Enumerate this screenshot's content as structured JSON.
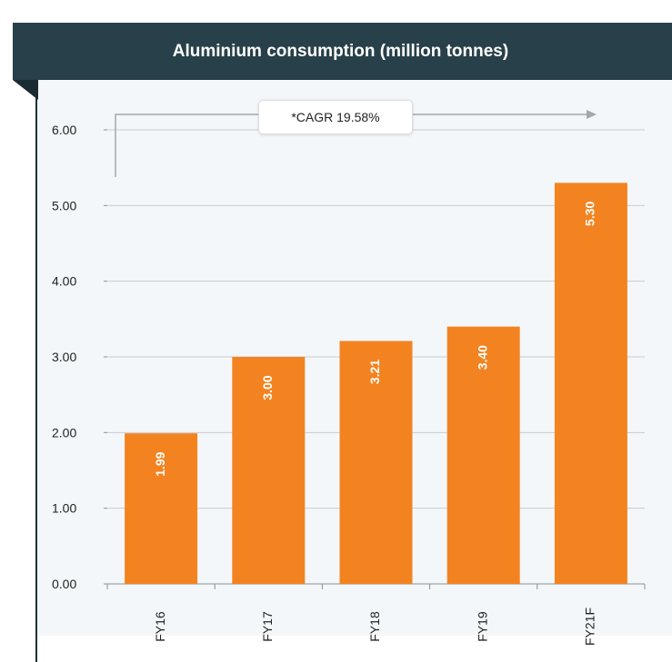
{
  "chart_data": {
    "type": "bar",
    "title": "Aluminium consumption (million tonnes)",
    "categories": [
      "FY16",
      "FY17",
      "FY18",
      "FY19",
      "FY21F"
    ],
    "values": [
      1.99,
      3.0,
      3.21,
      3.4,
      5.3
    ],
    "value_labels": [
      "1.99",
      "3.00",
      "3.21",
      "3.40",
      "5.30"
    ],
    "ylim": [
      0,
      6
    ],
    "yticks": [
      "0.00",
      "1.00",
      "2.00",
      "3.00",
      "4.00",
      "5.00",
      "6.00"
    ],
    "grid": true,
    "annotation": "*CAGR 19.58%",
    "colors": {
      "bar": "#f38320",
      "header": "#284049",
      "background": "#f4f7f9",
      "grid": "#c8cdd0"
    }
  }
}
